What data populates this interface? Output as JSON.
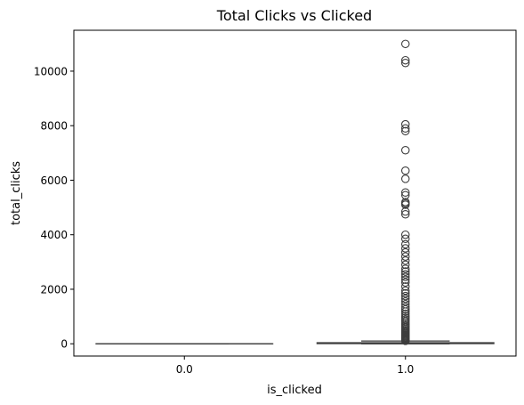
{
  "chart_data": {
    "type": "box",
    "title": "Total Clicks vs Clicked",
    "xlabel": "is_clicked",
    "ylabel": "total_clicks",
    "categories": [
      "0.0",
      "1.0"
    ],
    "ylim": [
      -450,
      11500
    ],
    "yticks": [
      0,
      2000,
      4000,
      6000,
      8000,
      10000
    ],
    "ytick_labels": [
      "0",
      "2000",
      "4000",
      "6000",
      "8000",
      "10000"
    ],
    "grid": false,
    "boxes": [
      {
        "category": "0.0",
        "min": 0,
        "q1": 0,
        "median": 0,
        "q3": 0,
        "max": 0,
        "outliers": []
      },
      {
        "category": "1.0",
        "min": 0,
        "q1": 5,
        "median": 15,
        "q3": 40,
        "max": 100,
        "outliers": [
          110,
          130,
          150,
          170,
          190,
          220,
          250,
          280,
          310,
          340,
          380,
          420,
          460,
          500,
          550,
          600,
          650,
          700,
          760,
          820,
          880,
          950,
          1020,
          1100,
          1180,
          1260,
          1350,
          1450,
          1550,
          1650,
          1750,
          1850,
          1950,
          2100,
          2250,
          2350,
          2450,
          2550,
          2650,
          2750,
          2900,
          3050,
          3200,
          3350,
          3500,
          3650,
          3850,
          4000,
          4750,
          4850,
          5100,
          5150,
          5200,
          5450,
          5550,
          6050,
          6350,
          7100,
          7800,
          7900,
          8050,
          10300,
          10400,
          11000
        ]
      }
    ],
    "colors": {
      "box_face": "#ffffff",
      "box_edge": "#3d3d3d",
      "frame": "#000000"
    }
  }
}
